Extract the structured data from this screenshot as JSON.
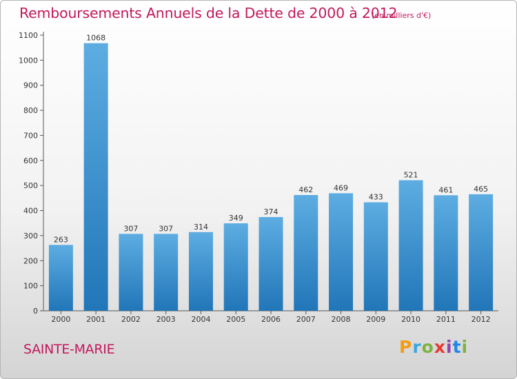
{
  "title": "Remboursements Annuels de la Dette de 2000 à 2012",
  "subtitle": "(en milliers d'€)",
  "town": "SAINTE-MARIE",
  "logo": {
    "letters": [
      "P",
      "r",
      "o",
      "x",
      "i",
      "t",
      "i"
    ],
    "colors": [
      "#f39c12",
      "#3aa8e0",
      "#7cb342",
      "#e53935",
      "#8e44ad",
      "#1e88e5",
      "#7cb342"
    ]
  },
  "colors": {
    "bar_light": "#5dade2",
    "bar_dark": "#2176b8",
    "accent": "#c2185b"
  },
  "chart_data": {
    "type": "bar",
    "categories": [
      "2000",
      "2001",
      "2002",
      "2003",
      "2004",
      "2005",
      "2006",
      "2007",
      "2008",
      "2009",
      "2010",
      "2011",
      "2012"
    ],
    "values": [
      263,
      1068,
      307,
      307,
      314,
      349,
      374,
      462,
      469,
      433,
      521,
      461,
      465
    ],
    "ylim": [
      0,
      1100
    ],
    "yticks": [
      0,
      100,
      200,
      300,
      400,
      500,
      600,
      700,
      800,
      900,
      1000,
      1100
    ],
    "grid": false,
    "legend": "none"
  }
}
